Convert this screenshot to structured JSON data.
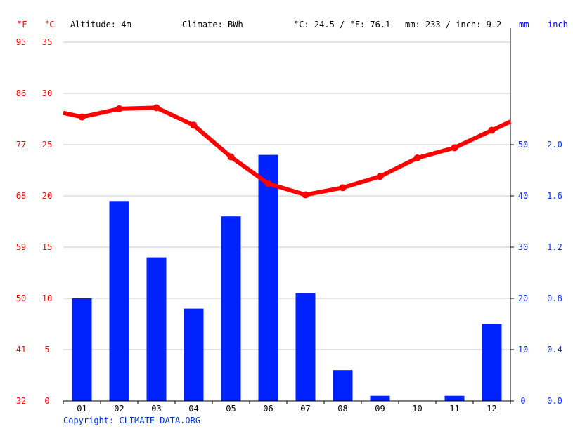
{
  "header": {
    "unit_f": "°F",
    "unit_c": "°C",
    "altitude": "Altitude: 4m",
    "climate": "Climate: BWh",
    "temp_avg": "°C: 24.5 / °F: 76.1",
    "precip_total": "mm: 233 / inch: 9.2",
    "unit_mm": "mm",
    "unit_inch": "inch"
  },
  "copyright": "Copyright: CLIMATE-DATA.ORG",
  "colors": {
    "temperature": "#ff0000",
    "precipitation": "#0022ff",
    "temp_axis": "#ff0000",
    "precip_axis": "#0033ff",
    "grid": "#c8c8c8"
  },
  "chart_data": {
    "type": "bar",
    "categories": [
      "01",
      "02",
      "03",
      "04",
      "05",
      "06",
      "07",
      "08",
      "09",
      "10",
      "11",
      "12"
    ],
    "series": [
      {
        "kind": "bar",
        "axis": "right-mm",
        "values": [
          20,
          39,
          28,
          18,
          36,
          48,
          21,
          6,
          1,
          0,
          1,
          15
        ]
      },
      {
        "kind": "line",
        "axis": "left-celsius",
        "values": [
          27.7,
          28.5,
          28.6,
          26.9,
          23.8,
          21.2,
          20.1,
          20.8,
          21.9,
          23.7,
          24.7,
          26.4
        ]
      }
    ],
    "left_axis_celsius": {
      "ticks": [
        "0",
        "5",
        "10",
        "15",
        "20",
        "25",
        "30",
        "35"
      ],
      "range": [
        0,
        35
      ]
    },
    "left_axis_fahrenheit": {
      "ticks": [
        "32",
        "41",
        "50",
        "59",
        "68",
        "77",
        "86",
        "95"
      ]
    },
    "right_axis_mm": {
      "ticks": [
        "0",
        "10",
        "20",
        "30",
        "40",
        "50"
      ],
      "range": [
        0,
        70
      ]
    },
    "right_axis_inch": {
      "ticks": [
        "0.0",
        "0.4",
        "0.8",
        "1.2",
        "1.6",
        "2.0"
      ]
    },
    "grid": true
  }
}
